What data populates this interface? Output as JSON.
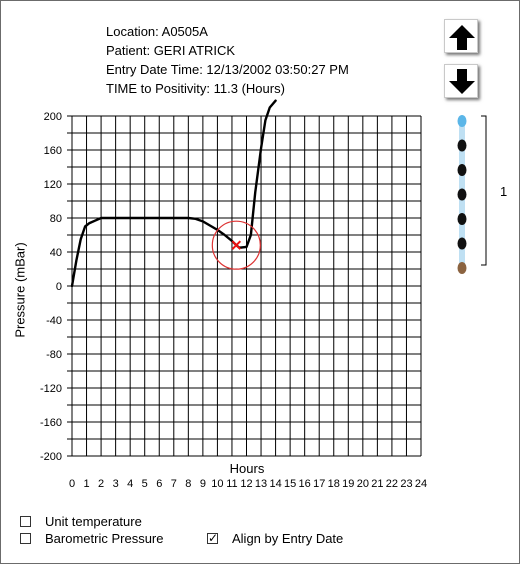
{
  "info": {
    "location": "Location: A0505A",
    "patient": "Patient: GERI ATRICK",
    "entry_date_time": "Entry Date Time: 12/13/2002 03:50:27 PM",
    "time_to_positivity": "TIME to Positivity: 11.3 (Hours)"
  },
  "navigation": {
    "up_icon": "arrow-up-icon",
    "down_icon": "arrow-down-icon"
  },
  "indicator": {
    "group_label": "1",
    "dots": [
      "light-blue",
      "black",
      "black",
      "black",
      "black",
      "black",
      "brown"
    ],
    "colors": {
      "light-blue": "#5bb6e8",
      "black": "#111111",
      "brown": "#8b6340",
      "bar": "#bfe0f3"
    }
  },
  "chart_data": {
    "type": "line",
    "xlabel": "Hours",
    "ylabel": "Pressure (mBar)",
    "xlim": [
      0,
      24
    ],
    "ylim": [
      -200,
      200
    ],
    "x_ticks": [
      0,
      1,
      2,
      3,
      4,
      5,
      6,
      7,
      8,
      9,
      10,
      11,
      12,
      13,
      14,
      15,
      16,
      17,
      18,
      19,
      20,
      21,
      22,
      23,
      24
    ],
    "y_ticks": [
      200,
      160,
      120,
      80,
      40,
      0,
      -40,
      -80,
      -120,
      -160,
      -200
    ],
    "grid": true,
    "series": [
      {
        "color": "#000000",
        "x": [
          0,
          0.3,
          0.6,
          0.9,
          1.2,
          1.6,
          2,
          3,
          4,
          5,
          6,
          7,
          8,
          8.5,
          9,
          9.5,
          10,
          10.5,
          11,
          11.3,
          11.5,
          12,
          12.3,
          12.6,
          13,
          13.3,
          13.6,
          14
        ],
        "y": [
          0,
          30,
          55,
          70,
          74,
          77,
          80,
          80,
          80,
          80,
          80,
          80,
          80,
          79,
          76,
          71,
          66,
          60,
          53,
          48,
          45,
          46,
          60,
          110,
          162,
          195,
          210,
          218
        ]
      }
    ],
    "marker": {
      "x": 11.3,
      "y": 48,
      "color": "#e11",
      "circle_color": "#d33"
    }
  },
  "options": {
    "unit_temperature": {
      "label": "Unit temperature",
      "checked": false
    },
    "barometric_pressure": {
      "label": "Barometric Pressure",
      "checked": false
    },
    "align_by_entry_date": {
      "label": "Align by Entry Date",
      "checked": true
    }
  }
}
